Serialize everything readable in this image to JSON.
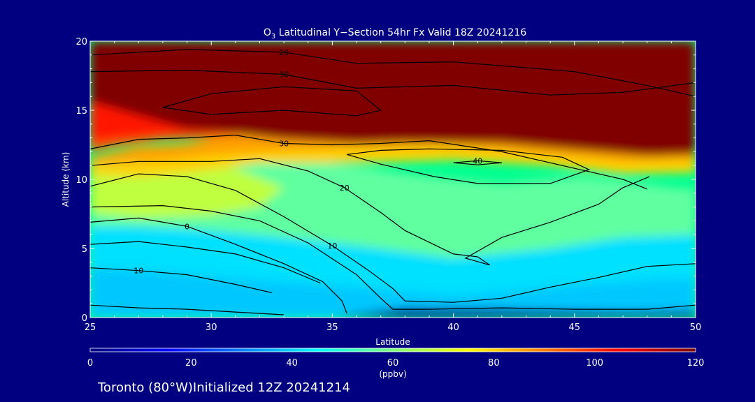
{
  "figure": {
    "background": "#000080",
    "title_main": "O",
    "title_sub": "3",
    "title_rest": " Latitudinal Y−Section 54hr  Fx Valid 18Z 20241216",
    "footer": "Toronto (80°W)Initialized 12Z 20241214"
  },
  "chart_data": {
    "type": "heatmap",
    "xlabel": "Latitude",
    "ylabel": "Altitude (km)",
    "xlim": [
      25,
      50
    ],
    "ylim": [
      0,
      20
    ],
    "xticks": [
      25,
      30,
      35,
      40,
      45,
      50
    ],
    "yticks": [
      0,
      5,
      10,
      15,
      20
    ],
    "colorbar": {
      "label": "(ppbv)",
      "range": [
        0,
        120
      ],
      "ticks": [
        0,
        20,
        40,
        60,
        80,
        100,
        120
      ],
      "colors": [
        "#000080",
        "#0000ff",
        "#0080ff",
        "#00ffff",
        "#80ff80",
        "#ffff00",
        "#ff8000",
        "#ff0000",
        "#800000"
      ]
    },
    "field_layers": [
      {
        "color": "#00e0ff",
        "points": [
          [
            25,
            6.6
          ],
          [
            27,
            6.6
          ],
          [
            30,
            6.3
          ],
          [
            33,
            5.8
          ],
          [
            36,
            5.2
          ],
          [
            40,
            4.3
          ],
          [
            44,
            5.0
          ],
          [
            47,
            5.8
          ],
          [
            50,
            6.0
          ],
          [
            50,
            0
          ],
          [
            25,
            0
          ]
        ]
      },
      {
        "color": "#00c8ff",
        "points": [
          [
            25,
            3.6
          ],
          [
            28,
            3.3
          ],
          [
            32,
            2.7
          ],
          [
            36,
            2.2
          ],
          [
            40,
            1.6
          ],
          [
            44,
            2.2
          ],
          [
            48,
            2.7
          ],
          [
            50,
            2.8
          ],
          [
            50,
            0
          ],
          [
            25,
            0
          ]
        ]
      },
      {
        "color": "#60ffa0",
        "points": [
          [
            25,
            9.8
          ],
          [
            27,
            10.6
          ],
          [
            30,
            11.2
          ],
          [
            34,
            11.4
          ],
          [
            38,
            10.4
          ],
          [
            42,
            9.7
          ],
          [
            45,
            10.2
          ],
          [
            47,
            9.9
          ],
          [
            49,
            9.4
          ],
          [
            50,
            9.3
          ],
          [
            50,
            6.0
          ],
          [
            47,
            5.8
          ],
          [
            44,
            5.0
          ],
          [
            40,
            4.3
          ],
          [
            36,
            5.2
          ],
          [
            33,
            5.8
          ],
          [
            30,
            6.3
          ],
          [
            27,
            6.6
          ],
          [
            25,
            6.6
          ]
        ]
      },
      {
        "color": "#c0ff40",
        "points": [
          [
            25,
            7.6
          ],
          [
            27,
            7.2
          ],
          [
            30,
            7.4
          ],
          [
            32,
            8.0
          ],
          [
            33,
            9.4
          ],
          [
            31,
            10.8
          ],
          [
            28,
            11.4
          ],
          [
            25,
            11.0
          ]
        ]
      },
      {
        "color": "#ffd000",
        "points": [
          [
            25,
            10.8
          ],
          [
            28,
            11.4
          ],
          [
            30,
            11.8
          ],
          [
            32,
            12.0
          ],
          [
            36,
            12.3
          ],
          [
            40,
            12.4
          ],
          [
            44,
            11.8
          ],
          [
            47,
            11.3
          ],
          [
            50,
            11.4
          ],
          [
            50,
            10.5
          ],
          [
            47,
            10.4
          ],
          [
            44,
            11.0
          ],
          [
            40,
            11.4
          ],
          [
            36,
            11.2
          ],
          [
            32,
            11.2
          ],
          [
            29,
            10.5
          ],
          [
            27,
            10.2
          ],
          [
            25,
            10.3
          ]
        ]
      },
      {
        "color": "#ffa000",
        "points": [
          [
            25,
            11.6
          ],
          [
            27,
            12.4
          ],
          [
            29,
            12.6
          ],
          [
            31,
            13.3
          ],
          [
            33,
            12.9
          ],
          [
            36,
            12.6
          ],
          [
            38,
            12.7
          ],
          [
            42,
            12.6
          ],
          [
            46,
            12.0
          ],
          [
            48,
            11.7
          ],
          [
            50,
            11.8
          ],
          [
            50,
            11.4
          ],
          [
            47,
            11.3
          ],
          [
            44,
            11.8
          ],
          [
            40,
            12.4
          ],
          [
            36,
            12.3
          ],
          [
            32,
            12.0
          ],
          [
            30,
            11.8
          ],
          [
            28,
            11.4
          ],
          [
            25,
            11.0
          ]
        ]
      },
      {
        "color": "#ff5000",
        "points": [
          [
            25,
            13.0
          ],
          [
            27,
            13.3
          ],
          [
            29,
            13.5
          ],
          [
            31,
            13.6
          ],
          [
            32,
            13.4
          ],
          [
            30,
            13.0
          ],
          [
            28,
            12.9
          ],
          [
            26,
            12.4
          ],
          [
            25,
            12.0
          ]
        ]
      },
      {
        "color": "#ff1800",
        "points": [
          [
            25,
            15.8
          ],
          [
            27,
            15.4
          ],
          [
            29,
            14.6
          ],
          [
            31,
            14.2
          ],
          [
            32,
            13.6
          ],
          [
            30,
            13.4
          ],
          [
            28,
            13.3
          ],
          [
            26,
            13.0
          ],
          [
            25,
            12.8
          ]
        ]
      },
      {
        "color": "#800000",
        "points": [
          [
            25,
            20
          ],
          [
            50,
            20
          ],
          [
            50,
            11.8
          ],
          [
            48,
            11.7
          ],
          [
            46,
            12.0
          ],
          [
            42,
            12.6
          ],
          [
            38,
            12.7
          ],
          [
            36,
            12.6
          ],
          [
            33,
            12.9
          ],
          [
            31,
            13.3
          ],
          [
            29,
            13.6
          ],
          [
            27,
            14.6
          ],
          [
            25,
            15.6
          ]
        ]
      },
      {
        "color": "#000090",
        "points": [
          [
            35,
            0
          ],
          [
            36,
            0.25
          ],
          [
            38,
            0.7
          ],
          [
            41,
            0.65
          ],
          [
            44,
            0.55
          ],
          [
            47,
            0.45
          ],
          [
            50,
            0.5
          ],
          [
            50,
            0
          ]
        ]
      }
    ],
    "contours": [
      {
        "level": "30",
        "points": [
          [
            25,
            17.8
          ],
          [
            29,
            17.9
          ],
          [
            33,
            17.6
          ],
          [
            36,
            16.6
          ],
          [
            40,
            16.8
          ],
          [
            44,
            16.1
          ],
          [
            47,
            16.3
          ],
          [
            50,
            17.0
          ]
        ]
      },
      {
        "level": "20",
        "points": [
          [
            25,
            19.0
          ],
          [
            29,
            19.4
          ],
          [
            33,
            19.2
          ],
          [
            36,
            18.4
          ],
          [
            40,
            18.5
          ],
          [
            45,
            17.8
          ],
          [
            48,
            16.8
          ],
          [
            50,
            16.0
          ]
        ]
      },
      {
        "level": "",
        "points": [
          [
            28,
            15.2
          ],
          [
            30,
            16.2
          ],
          [
            33,
            16.7
          ],
          [
            36,
            16.4
          ],
          [
            37,
            15.0
          ],
          [
            36,
            14.6
          ],
          [
            33,
            15.0
          ],
          [
            30,
            14.7
          ],
          [
            28,
            15.2
          ]
        ]
      },
      {
        "level": "30",
        "points": [
          [
            25,
            12.2
          ],
          [
            27,
            12.9
          ],
          [
            29,
            13.0
          ],
          [
            31,
            13.2
          ],
          [
            33,
            12.6
          ],
          [
            35,
            12.5
          ],
          [
            37,
            12.6
          ],
          [
            39,
            12.8
          ],
          [
            42,
            12.0
          ],
          [
            45,
            10.8
          ],
          [
            47,
            10.0
          ],
          [
            48,
            9.3
          ]
        ]
      },
      {
        "level": "",
        "points": [
          [
            35.6,
            11.8
          ],
          [
            37,
            11.1
          ],
          [
            39.2,
            10.2
          ],
          [
            41,
            9.7
          ],
          [
            44,
            9.7
          ],
          [
            45.6,
            10.7
          ],
          [
            44.5,
            11.6
          ],
          [
            42,
            12.1
          ],
          [
            39,
            12.2
          ],
          [
            37,
            12.1
          ],
          [
            35.6,
            11.8
          ]
        ]
      },
      {
        "level": "40",
        "points": [
          [
            40,
            11.2
          ],
          [
            41,
            11.35
          ],
          [
            42,
            11.2
          ],
          [
            41,
            11.05
          ],
          [
            40,
            11.2
          ]
        ]
      },
      {
        "level": "20",
        "points": [
          [
            25,
            11.0
          ],
          [
            27,
            11.3
          ],
          [
            30,
            11.3
          ],
          [
            32,
            11.5
          ],
          [
            34,
            10.6
          ],
          [
            35.5,
            9.4
          ],
          [
            37,
            7.6
          ],
          [
            38,
            6.3
          ],
          [
            40,
            4.6
          ],
          [
            41,
            4.4
          ],
          [
            41.5,
            3.8
          ],
          [
            40.5,
            4.3
          ],
          [
            42,
            5.8
          ],
          [
            44,
            6.9
          ],
          [
            46,
            8.2
          ],
          [
            47,
            9.4
          ],
          [
            48.1,
            10.2
          ]
        ]
      },
      {
        "level": "10",
        "points": [
          [
            25,
            9.5
          ],
          [
            27,
            10.4
          ],
          [
            29,
            10.2
          ],
          [
            31,
            9.2
          ],
          [
            33,
            7.3
          ],
          [
            35,
            5.2
          ],
          [
            36.5,
            3.4
          ],
          [
            37.5,
            2.1
          ],
          [
            38,
            1.2
          ],
          [
            40,
            1.1
          ],
          [
            42,
            1.4
          ],
          [
            44,
            2.2
          ],
          [
            46,
            2.9
          ],
          [
            48,
            3.7
          ],
          [
            50,
            3.9
          ]
        ]
      },
      {
        "level": "0",
        "points": [
          [
            25,
            6.9
          ],
          [
            27,
            7.2
          ],
          [
            29,
            6.6
          ],
          [
            31,
            5.3
          ],
          [
            33,
            3.9
          ],
          [
            34.6,
            2.6
          ],
          [
            35.4,
            1.2
          ],
          [
            35.6,
            0.3
          ]
        ]
      },
      {
        "level": "",
        "points": [
          [
            25,
            8.0
          ],
          [
            28,
            8.1
          ],
          [
            30,
            7.7
          ],
          [
            32,
            7.0
          ],
          [
            34,
            5.4
          ],
          [
            36,
            3.1
          ],
          [
            37,
            1.4
          ],
          [
            37.5,
            0.6
          ],
          [
            39,
            0.6
          ],
          [
            42,
            0.7
          ],
          [
            45,
            0.6
          ],
          [
            48,
            0.6
          ],
          [
            50,
            0.9
          ]
        ]
      },
      {
        "level": "",
        "points": [
          [
            25,
            5.3
          ],
          [
            27,
            5.5
          ],
          [
            29,
            5.1
          ],
          [
            31,
            4.6
          ],
          [
            33,
            3.6
          ],
          [
            34.5,
            2.5
          ]
        ]
      },
      {
        "level": "10",
        "points": [
          [
            25,
            3.6
          ],
          [
            27,
            3.4
          ],
          [
            29,
            3.1
          ],
          [
            31,
            2.4
          ],
          [
            32.5,
            1.8
          ]
        ]
      },
      {
        "level": "",
        "points": [
          [
            25,
            0.9
          ],
          [
            27,
            0.7
          ],
          [
            29,
            0.6
          ],
          [
            31,
            0.4
          ],
          [
            33,
            0.2
          ]
        ]
      }
    ]
  }
}
